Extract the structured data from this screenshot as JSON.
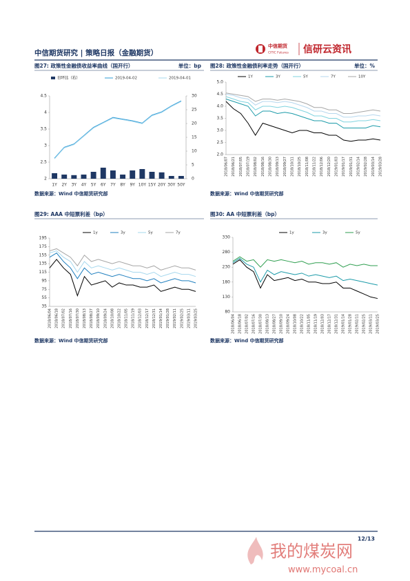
{
  "header": {
    "title": "中信期货研究 | 策略日报（金融期货）",
    "logo_cn": "中信期货",
    "logo_en": "CITIC Futures",
    "brand": "信研云资讯"
  },
  "chart_data": [
    {
      "type": "combo",
      "title": "图27: 政策性金融债收益率曲线（国开行）",
      "unit": "单位：bp",
      "source": "数据来源：Wind  中信期货研究部",
      "categories": [
        "1Y",
        "2Y",
        "3Y",
        "4Y",
        "5Y",
        "6Y",
        "7Y",
        "8Y",
        "9Y",
        "10Y",
        "15Y",
        "20Y",
        "30Y",
        "50Y"
      ],
      "series": [
        {
          "name": "日环比（右）",
          "type": "bar",
          "axis": "y2",
          "color": "#1f3864",
          "values": [
            2,
            1.5,
            1.3,
            1.5,
            2.5,
            4,
            3,
            1.5,
            3,
            3.5,
            2.5,
            2.3,
            1,
            1
          ]
        },
        {
          "name": "2019-04-02",
          "color": "#2e9bd6",
          "values": [
            2.62,
            2.95,
            3.05,
            3.3,
            3.55,
            3.7,
            3.85,
            3.8,
            3.75,
            3.68,
            3.92,
            4.02,
            4.2,
            4.35
          ]
        },
        {
          "name": "2019-04-01",
          "color": "#a6d8ee",
          "values": [
            2.6,
            2.93,
            3.03,
            3.28,
            3.53,
            3.68,
            3.83,
            3.78,
            3.73,
            3.66,
            3.9,
            4.0,
            4.18,
            4.33
          ]
        }
      ],
      "ylim": [
        2,
        4.5
      ],
      "yticks": [
        2,
        2.5,
        3,
        3.5,
        4,
        4.5
      ],
      "y2lim": [
        0,
        30
      ],
      "y2ticks": [
        0,
        5,
        10,
        15,
        20,
        25,
        30
      ]
    },
    {
      "type": "line",
      "title": "图28: 政策性金融债利率走势（国开行）",
      "unit": "单位：%",
      "source": "数据来源：Wind  中信期货研究部",
      "categories": [
        "2018/06/07",
        "2018/06/21",
        "2018/07/05",
        "2018/07/19",
        "2018/08/02",
        "2018/08/16",
        "2018/08/30",
        "2018/09/13",
        "2018/09/27",
        "2018/10/11",
        "2018/10/25",
        "2018/11/08",
        "2018/11/22",
        "2018/12/06",
        "2018/12/20",
        "2019/01/03",
        "2019/01/17",
        "2019/01/31",
        "2019/02/14",
        "2019/02/28",
        "2019/03/14",
        "2019/03/28"
      ],
      "series": [
        {
          "name": "1Y",
          "color": "#000000",
          "values": [
            4.2,
            3.9,
            3.7,
            3.3,
            2.8,
            3.3,
            3.2,
            3.1,
            3.0,
            2.9,
            3.0,
            3.0,
            2.9,
            2.9,
            2.8,
            2.8,
            2.6,
            2.55,
            2.6,
            2.6,
            2.65,
            2.6
          ]
        },
        {
          "name": "3Y",
          "color": "#1a9aa8",
          "values": [
            4.3,
            4.2,
            4.1,
            4.0,
            3.6,
            3.8,
            3.8,
            3.7,
            3.75,
            3.7,
            3.6,
            3.5,
            3.4,
            3.4,
            3.3,
            3.3,
            3.1,
            3.1,
            3.1,
            3.1,
            3.2,
            3.15
          ]
        },
        {
          "name": "5Y",
          "color": "#7fd3df",
          "values": [
            4.4,
            4.3,
            4.2,
            4.15,
            3.85,
            4.0,
            4.0,
            3.95,
            4.0,
            3.95,
            3.85,
            3.75,
            3.6,
            3.6,
            3.5,
            3.5,
            3.35,
            3.35,
            3.4,
            3.4,
            3.45,
            3.4
          ]
        },
        {
          "name": "7Y",
          "color": "#b6d7ee",
          "values": [
            4.5,
            4.45,
            4.35,
            4.3,
            4.05,
            4.2,
            4.2,
            4.15,
            4.2,
            4.15,
            4.05,
            3.95,
            3.8,
            3.8,
            3.7,
            3.7,
            3.55,
            3.55,
            3.6,
            3.6,
            3.65,
            3.6
          ]
        },
        {
          "name": "10Y",
          "color": "#a6a6a6",
          "values": [
            4.55,
            4.5,
            4.45,
            4.4,
            4.2,
            4.3,
            4.3,
            4.25,
            4.3,
            4.25,
            4.2,
            4.1,
            3.95,
            3.95,
            3.85,
            3.85,
            3.7,
            3.7,
            3.75,
            3.8,
            3.85,
            3.8
          ]
        }
      ],
      "ylim": [
        2,
        5
      ],
      "yticks": [
        {
          "value": 2,
          "label": "2.0"
        },
        2.5,
        {
          "value": 3,
          "label": "3.0"
        },
        3.5,
        {
          "value": 4,
          "label": "4.0"
        },
        4.5,
        {
          "value": 5,
          "label": "5.0"
        }
      ]
    },
    {
      "type": "line",
      "title": "图29: AAA 中短票利差（bp）",
      "source": "数据来源：Wind  中信期货研究部",
      "categories": [
        "2018/06/04",
        "2018/06/18",
        "2018/07/02",
        "2018/07/16",
        "2018/07/30",
        "2018/08/13",
        "2018/08/27",
        "2018/09/10",
        "2018/09/24",
        "2018/10/08",
        "2018/10/22",
        "2018/11/05",
        "2018/11/19",
        "2018/12/03",
        "2018/12/17",
        "2018/12/31",
        "2019/01/14",
        "2019/01/28",
        "2019/02/11",
        "2019/02/25",
        "2019/03/11",
        "2019/03/25"
      ],
      "series": [
        {
          "name": "1y",
          "color": "#000000",
          "values": [
            125,
            145,
            125,
            110,
            60,
            105,
            85,
            90,
            95,
            80,
            90,
            85,
            85,
            80,
            80,
            85,
            70,
            75,
            80,
            75,
            75,
            70
          ]
        },
        {
          "name": "3y",
          "color": "#1f7fbf",
          "values": [
            150,
            160,
            140,
            125,
            100,
            125,
            110,
            115,
            110,
            105,
            110,
            105,
            100,
            100,
            95,
            100,
            90,
            95,
            100,
            95,
            95,
            90
          ]
        },
        {
          "name": "5y",
          "color": "#a6d8ee",
          "values": [
            160,
            165,
            150,
            140,
            115,
            140,
            125,
            130,
            125,
            120,
            125,
            120,
            115,
            115,
            110,
            115,
            105,
            110,
            115,
            110,
            110,
            105
          ]
        },
        {
          "name": "7y",
          "color": "#a6a6a6",
          "values": [
            165,
            170,
            160,
            150,
            130,
            155,
            140,
            145,
            140,
            135,
            140,
            135,
            130,
            130,
            125,
            130,
            120,
            125,
            130,
            125,
            125,
            120
          ]
        }
      ],
      "ylim": [
        35,
        195
      ],
      "yticks": [
        35,
        55,
        75,
        95,
        115,
        135,
        155,
        175,
        195
      ]
    },
    {
      "type": "line",
      "title": "图30: AA 中短票利差（bp）",
      "source": "数据来源：Wind  中信期货研究部",
      "categories": [
        "2018/06/04",
        "2018/06/18",
        "2018/07/02",
        "2018/07/16",
        "2018/07/30",
        "2018/08/13",
        "2018/08/27",
        "2018/09/10",
        "2018/09/24",
        "2018/10/08",
        "2018/10/22",
        "2018/11/05",
        "2018/11/19",
        "2018/12/03",
        "2018/12/17",
        "2018/12/31",
        "2019/01/14",
        "2019/01/28",
        "2019/02/11",
        "2019/02/25",
        "2019/03/11",
        "2019/03/25"
      ],
      "series": [
        {
          "name": "1y",
          "color": "#000000",
          "values": [
            240,
            255,
            230,
            215,
            160,
            205,
            185,
            190,
            195,
            185,
            190,
            180,
            180,
            175,
            175,
            180,
            160,
            160,
            150,
            140,
            130,
            125
          ]
        },
        {
          "name": "3y",
          "color": "#1a9aa8",
          "values": [
            245,
            260,
            240,
            230,
            180,
            220,
            205,
            215,
            210,
            205,
            210,
            200,
            205,
            200,
            195,
            200,
            185,
            190,
            185,
            180,
            175,
            170
          ]
        },
        {
          "name": "5y",
          "color": "#2e9e4f",
          "values": [
            250,
            265,
            250,
            255,
            230,
            255,
            250,
            255,
            250,
            245,
            250,
            240,
            245,
            245,
            240,
            245,
            230,
            240,
            235,
            240,
            235,
            235
          ]
        }
      ],
      "ylim": [
        80,
        330
      ],
      "yticks": [
        80,
        130,
        180,
        230,
        280,
        330
      ]
    }
  ],
  "footer": {
    "page": "12/13"
  },
  "watermark": {
    "name": "我的煤炭网",
    "url": "www.mycoal.cn"
  }
}
